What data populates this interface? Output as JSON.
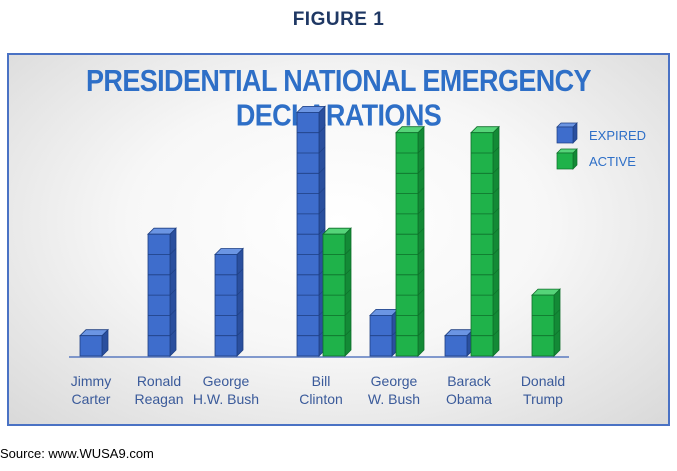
{
  "figure_label": "FIGURE 1",
  "source": "Source: www.WUSA9.com",
  "colors": {
    "expired_front": "#3e6dcc",
    "expired_top": "#6b95e3",
    "expired_side": "#2a4f9e",
    "expired_stroke": "#1e3f82",
    "active_front": "#1fb24a",
    "active_top": "#55d479",
    "active_side": "#138a36",
    "active_stroke": "#0e6e2a",
    "title": "#2e6fc7",
    "label": "#3a5a9a"
  },
  "chart_data": {
    "type": "bar",
    "title": "PRESIDENTIAL NATIONAL EMERGENCY DECLARATIONS",
    "categories": [
      [
        "Jimmy",
        "Carter"
      ],
      [
        "Ronald",
        "Reagan"
      ],
      [
        "George",
        "H.W. Bush"
      ],
      [
        "Bill",
        "Clinton"
      ],
      [
        "George",
        "W. Bush"
      ],
      [
        "Barack",
        "Obama"
      ],
      [
        "Donald",
        "Trump"
      ]
    ],
    "series": [
      {
        "name": "EXPIRED",
        "values": [
          1,
          6,
          5,
          12,
          2,
          1,
          0
        ]
      },
      {
        "name": "ACTIVE",
        "values": [
          0,
          0,
          0,
          6,
          11,
          11,
          3
        ]
      }
    ],
    "legend_position": "top-right",
    "grid": false
  }
}
